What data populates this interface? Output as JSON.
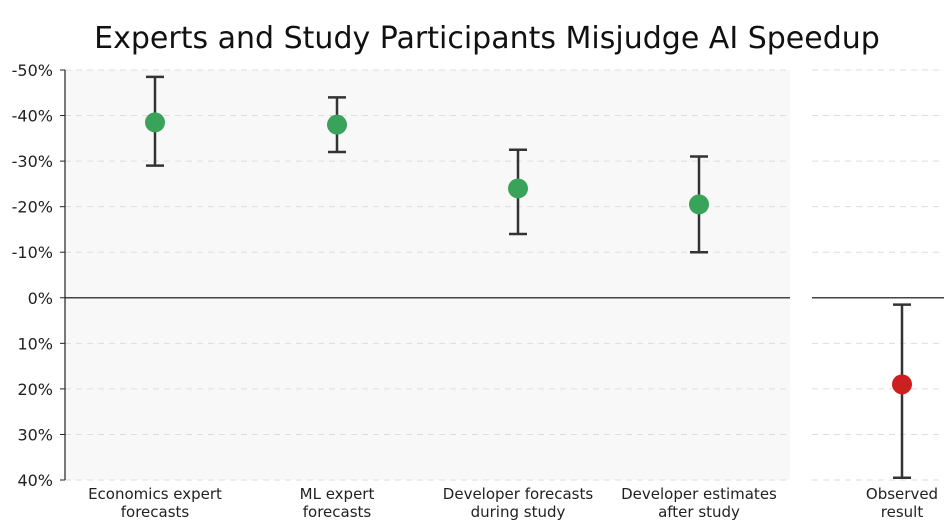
{
  "chart_data": {
    "type": "scatter",
    "title": "Experts and Study Participants Misjudge AI Speedup",
    "xlabel": "",
    "ylabel": "",
    "ylim": [
      -50,
      40
    ],
    "inverted_y": true,
    "grid": true,
    "y_ticks": [
      -50,
      -40,
      -30,
      -20,
      -10,
      0,
      10,
      20,
      30,
      40
    ],
    "y_tick_labels": [
      "-50%",
      "-40%",
      "-30%",
      "-20%",
      "-10%",
      "0%",
      "10%",
      "20%",
      "30%",
      "40%"
    ],
    "points": [
      {
        "label": [
          "Economics expert",
          "forecasts"
        ],
        "value": -38.5,
        "low": -48.5,
        "high": -29,
        "color": "#3aa35a",
        "panel": "forecast"
      },
      {
        "label": [
          "ML expert",
          "forecasts"
        ],
        "value": -38,
        "low": -44,
        "high": -32,
        "color": "#3aa35a",
        "panel": "forecast"
      },
      {
        "label": [
          "Developer forecasts",
          "during study"
        ],
        "value": -24,
        "low": -32.5,
        "high": -14,
        "color": "#3aa35a",
        "panel": "forecast"
      },
      {
        "label": [
          "Developer estimates",
          "after study"
        ],
        "value": -20.5,
        "low": -31,
        "high": -10,
        "color": "#3aa35a",
        "panel": "forecast"
      },
      {
        "label": [
          "Observed",
          "result"
        ],
        "value": 19,
        "low": 1.5,
        "high": 39.5,
        "color": "#cc1f1f",
        "panel": "observed"
      }
    ]
  }
}
